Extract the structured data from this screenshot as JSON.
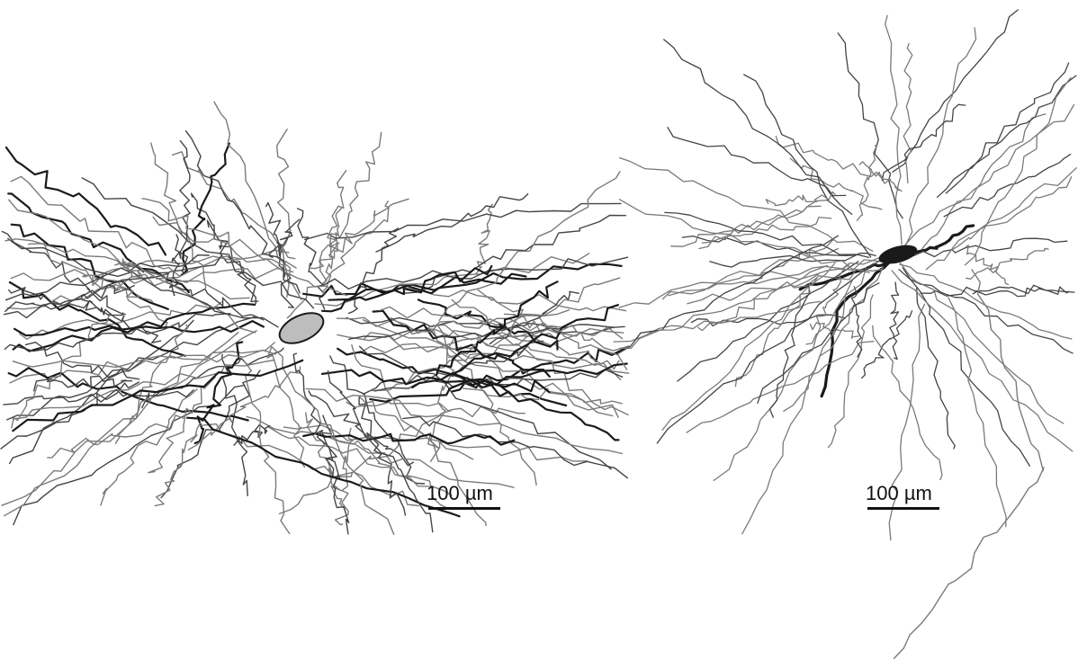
{
  "figure": {
    "panels": [
      {
        "name": "neuron-left",
        "scale_bar_label": "100 µm"
      },
      {
        "name": "neuron-right",
        "scale_bar_label": "100 µm"
      }
    ],
    "colors": {
      "background": "#ffffff",
      "stroke_dark": "#1a1a1a",
      "stroke_mid": "#444444",
      "stroke_light": "#7a7a7a",
      "scale_bar": "#111111"
    }
  }
}
